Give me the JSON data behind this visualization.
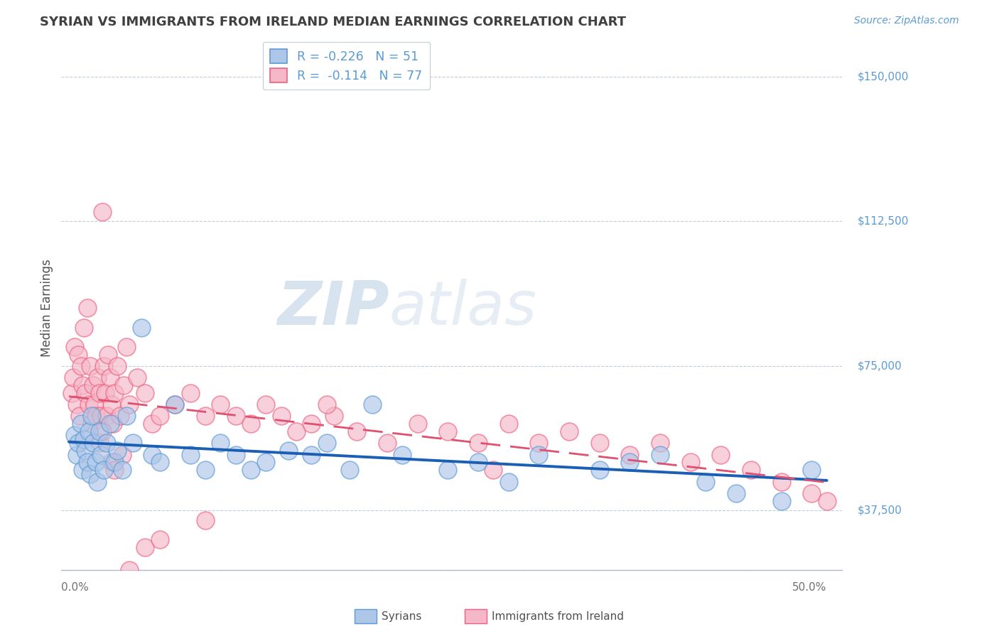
{
  "title": "SYRIAN VS IMMIGRANTS FROM IRELAND MEDIAN EARNINGS CORRELATION CHART",
  "source": "Source: ZipAtlas.com",
  "ylabel": "Median Earnings",
  "yticks": [
    37500,
    75000,
    112500,
    150000
  ],
  "ytick_labels": [
    "$37,500",
    "$75,000",
    "$112,500",
    "$150,000"
  ],
  "xlim": [
    0.0,
    50.0
  ],
  "ylim": [
    22000,
    158000
  ],
  "series1_label": "Syrians",
  "series2_label": "Immigrants from Ireland",
  "series1_color": "#5b9bd5",
  "series2_color": "#f06080",
  "series1_color_fill": "#aec6e8",
  "series2_color_fill": "#f5b8c8",
  "regression1_color": "#1a5fb4",
  "regression2_color": "#e05070",
  "background_color": "#ffffff",
  "grid_color": "#b8c8d8",
  "watermark_zip": "ZIP",
  "watermark_atlas": "atlas",
  "title_color": "#404040",
  "source_color": "#5b9bd5",
  "title_fontsize": 13,
  "source_fontsize": 10,
  "marker_size": 320,
  "marker_alpha": 0.65,
  "regression1_lw": 2.8,
  "regression2_lw": 2.0,
  "syrians_x": [
    0.4,
    0.5,
    0.6,
    0.8,
    0.9,
    1.0,
    1.1,
    1.2,
    1.3,
    1.4,
    1.5,
    1.6,
    1.8,
    1.9,
    2.0,
    2.1,
    2.3,
    2.5,
    2.7,
    3.0,
    3.2,
    3.5,
    3.8,
    4.2,
    4.8,
    5.5,
    6.0,
    7.0,
    8.0,
    9.0,
    10.0,
    11.0,
    12.0,
    13.0,
    14.5,
    16.0,
    17.0,
    18.5,
    20.0,
    22.0,
    25.0,
    27.0,
    29.0,
    31.0,
    35.0,
    37.0,
    39.0,
    42.0,
    44.0,
    47.0,
    49.0
  ],
  "syrians_y": [
    57000,
    52000,
    55000,
    60000,
    48000,
    56000,
    53000,
    50000,
    58000,
    47000,
    62000,
    55000,
    50000,
    45000,
    58000,
    52000,
    48000,
    55000,
    60000,
    50000,
    53000,
    48000,
    62000,
    55000,
    85000,
    52000,
    50000,
    65000,
    52000,
    48000,
    55000,
    52000,
    48000,
    50000,
    53000,
    52000,
    55000,
    48000,
    65000,
    52000,
    48000,
    50000,
    45000,
    52000,
    48000,
    50000,
    52000,
    45000,
    42000,
    40000,
    48000
  ],
  "ireland_x": [
    0.2,
    0.3,
    0.4,
    0.5,
    0.6,
    0.7,
    0.8,
    0.9,
    1.0,
    1.1,
    1.2,
    1.3,
    1.4,
    1.5,
    1.6,
    1.7,
    1.8,
    1.9,
    2.0,
    2.1,
    2.2,
    2.3,
    2.4,
    2.5,
    2.6,
    2.7,
    2.8,
    2.9,
    3.0,
    3.2,
    3.4,
    3.6,
    3.8,
    4.0,
    4.5,
    5.0,
    5.5,
    6.0,
    7.0,
    8.0,
    9.0,
    10.0,
    11.0,
    12.0,
    13.0,
    14.0,
    15.0,
    16.0,
    17.5,
    19.0,
    21.0,
    23.0,
    25.0,
    27.0,
    29.0,
    31.0,
    33.0,
    35.0,
    37.0,
    39.0,
    41.0,
    43.0,
    45.0,
    47.0,
    49.0,
    50.0,
    2.0,
    2.2,
    2.8,
    3.0,
    3.5,
    4.0,
    5.0,
    6.0,
    9.0,
    17.0,
    28.0
  ],
  "ireland_y": [
    68000,
    72000,
    80000,
    65000,
    78000,
    62000,
    75000,
    70000,
    85000,
    68000,
    90000,
    65000,
    75000,
    60000,
    70000,
    65000,
    62000,
    72000,
    68000,
    62000,
    115000,
    75000,
    68000,
    62000,
    78000,
    72000,
    65000,
    60000,
    68000,
    75000,
    62000,
    70000,
    80000,
    65000,
    72000,
    68000,
    60000,
    62000,
    65000,
    68000,
    62000,
    65000,
    62000,
    60000,
    65000,
    62000,
    58000,
    60000,
    62000,
    58000,
    55000,
    60000,
    58000,
    55000,
    60000,
    55000,
    58000,
    55000,
    52000,
    55000,
    50000,
    52000,
    48000,
    45000,
    42000,
    40000,
    55000,
    58000,
    50000,
    48000,
    52000,
    22000,
    28000,
    30000,
    35000,
    65000,
    48000
  ]
}
